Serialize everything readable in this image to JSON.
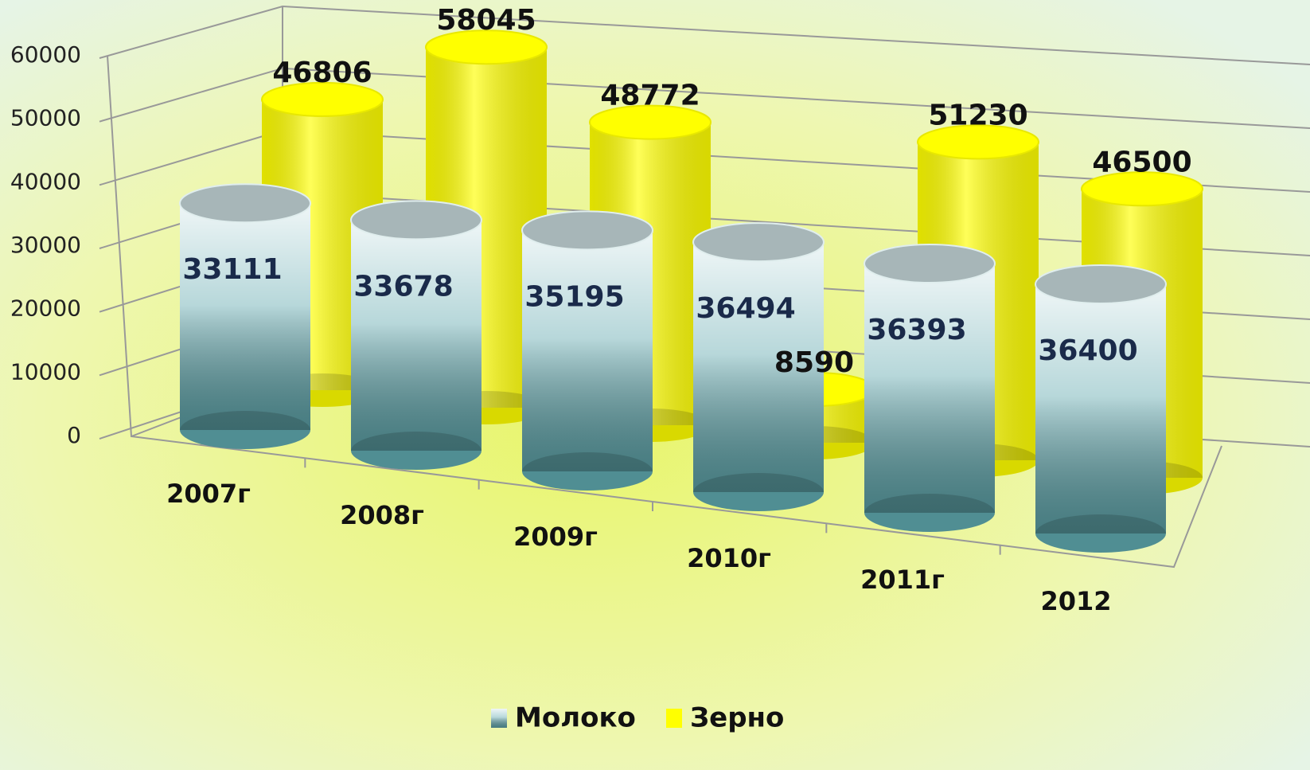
{
  "chart_data": {
    "type": "bar3d",
    "categories": [
      "2007г",
      "2008г",
      "2009г",
      "2010г",
      "2011г",
      "2012"
    ],
    "series": [
      {
        "name": "Молоко",
        "color": "#5fa7ad",
        "values": [
          33111,
          33678,
          35195,
          36494,
          36393,
          36400
        ]
      },
      {
        "name": "Зерно",
        "color": "#ffff00",
        "values": [
          46806,
          58045,
          48772,
          8590,
          51230,
          46500
        ]
      }
    ],
    "ylim": [
      0,
      60000
    ],
    "yticks": [
      0,
      10000,
      20000,
      30000,
      40000,
      50000,
      60000
    ],
    "grid": true
  }
}
